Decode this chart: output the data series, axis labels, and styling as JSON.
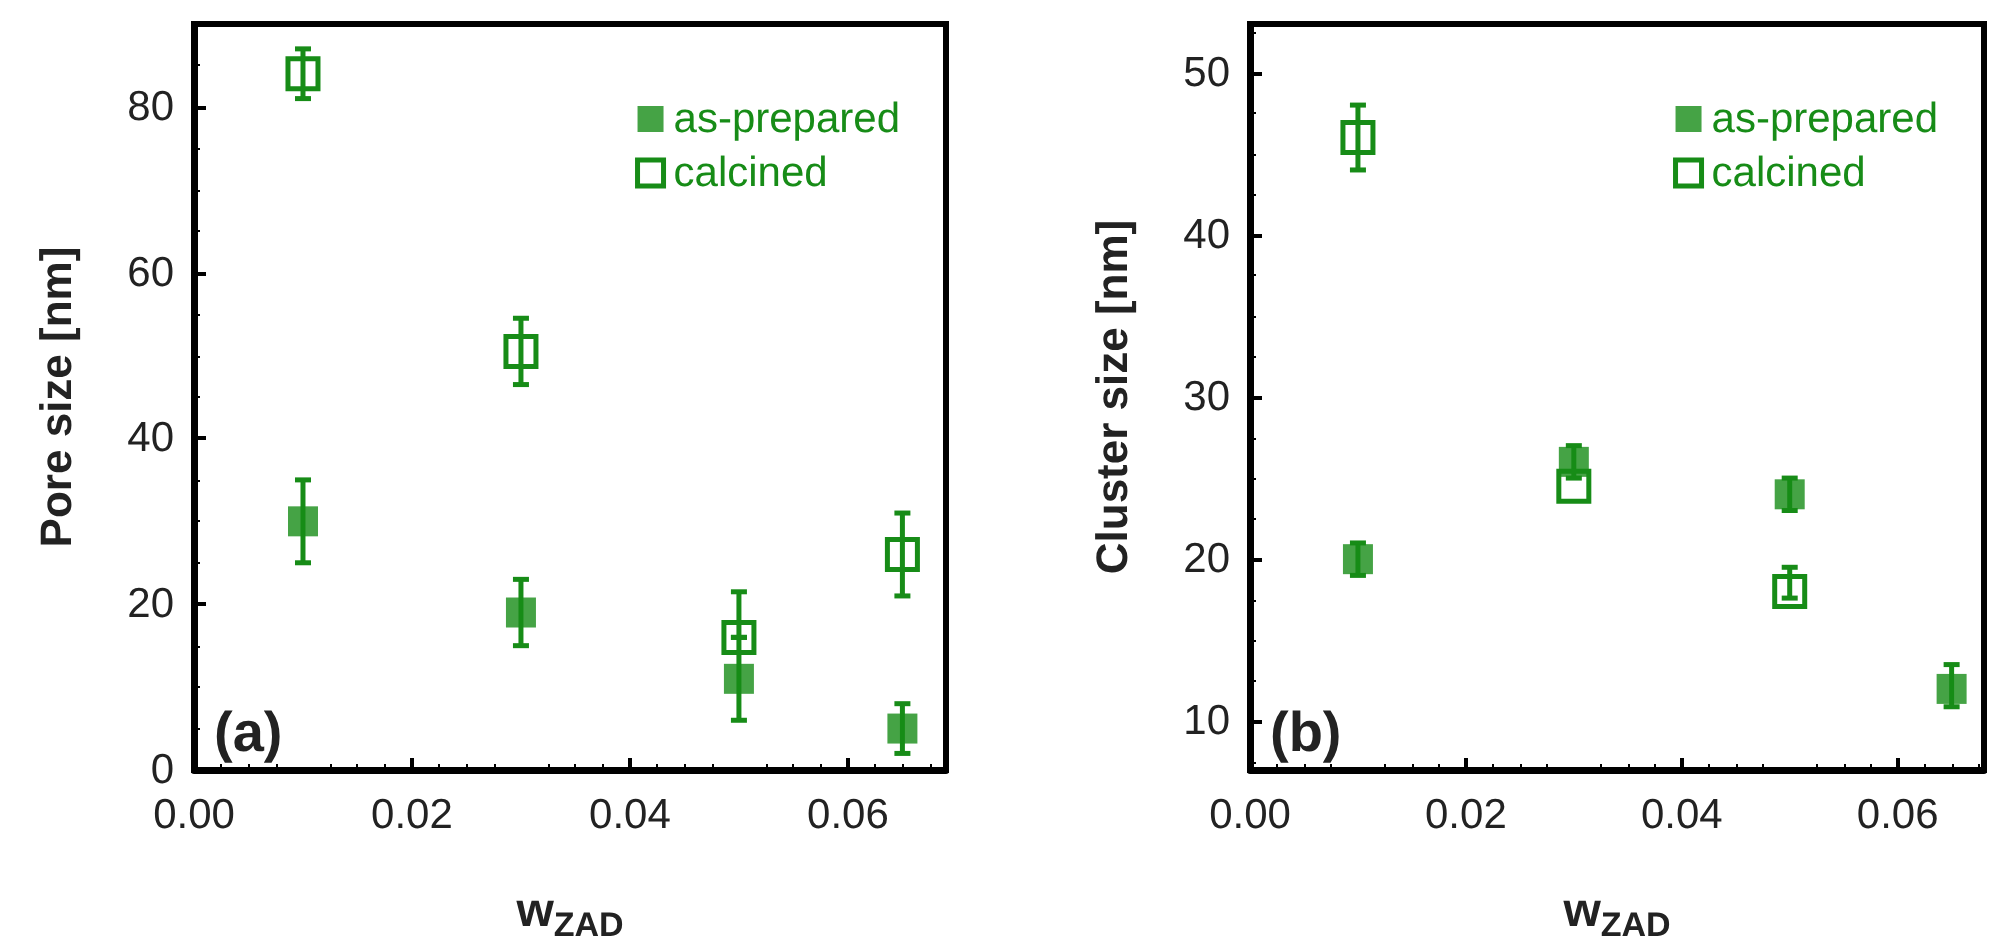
{
  "chart_data": [
    {
      "type": "scatter",
      "xlabel": "w$_{ZAD}$",
      "ylabel": "Pore size [nm]",
      "annotations": [
        "(a)"
      ],
      "xlim": [
        0,
        0.069
      ],
      "ylim": [
        0,
        90
      ],
      "xticks": [
        {
          "value": 0,
          "label": "0.00"
        },
        {
          "value": 0.02,
          "label": "0.02"
        },
        {
          "value": 0.04,
          "label": "0.04"
        },
        {
          "value": 0.06,
          "label": "0.06"
        }
      ],
      "yticks": [
        0,
        20,
        40,
        60,
        80
      ],
      "legend": "top right",
      "marker": "square",
      "grid": false,
      "series": [
        {
          "name": "as-prepared",
          "color": "#178c17",
          "x": [
            0.01,
            0.03,
            0.05,
            0.065
          ],
          "values": [
            30,
            19,
            11,
            5
          ],
          "errors": [
            5,
            4,
            5,
            3
          ]
        },
        {
          "name": "calcined",
          "color": "#178c17",
          "x": [
            0.01,
            0.03,
            0.05,
            0.065
          ],
          "values": [
            84,
            50.5,
            16,
            26
          ],
          "errors": [
            3,
            4,
            [
              16,
              21.5
            ],
            5
          ]
        }
      ]
    },
    {
      "type": "scatter",
      "xlabel": "w$_{ZAD}$",
      "ylabel": "Cluster size [nm]",
      "annotations": [
        "(b)"
      ],
      "xlim": [
        0,
        0.068
      ],
      "ylim": [
        7,
        53
      ],
      "xticks": [
        {
          "value": 0,
          "label": "0.00"
        },
        {
          "value": 0.02,
          "label": "0.02"
        },
        {
          "value": 0.04,
          "label": "0.04"
        },
        {
          "value": 0.06,
          "label": "0.06"
        }
      ],
      "yticks": [
        10,
        20,
        30,
        40,
        50
      ],
      "legend": "top right",
      "marker": "square",
      "grid": false,
      "series": [
        {
          "name": "as-prepared",
          "color": "#178c17",
          "x": [
            0.01,
            0.03,
            0.05,
            0.065
          ],
          "values": [
            20,
            26,
            24,
            12
          ],
          "errors": [
            1,
            1,
            1,
            [
              10.9,
              13.5
            ]
          ]
        },
        {
          "name": "calcined",
          "color": "#178c17",
          "x": [
            0.01,
            0.03,
            0.05
          ],
          "values": [
            46,
            24.5,
            18
          ],
          "errors": [
            2,
            null,
            [
              17.6,
              19.5
            ]
          ]
        }
      ]
    }
  ]
}
